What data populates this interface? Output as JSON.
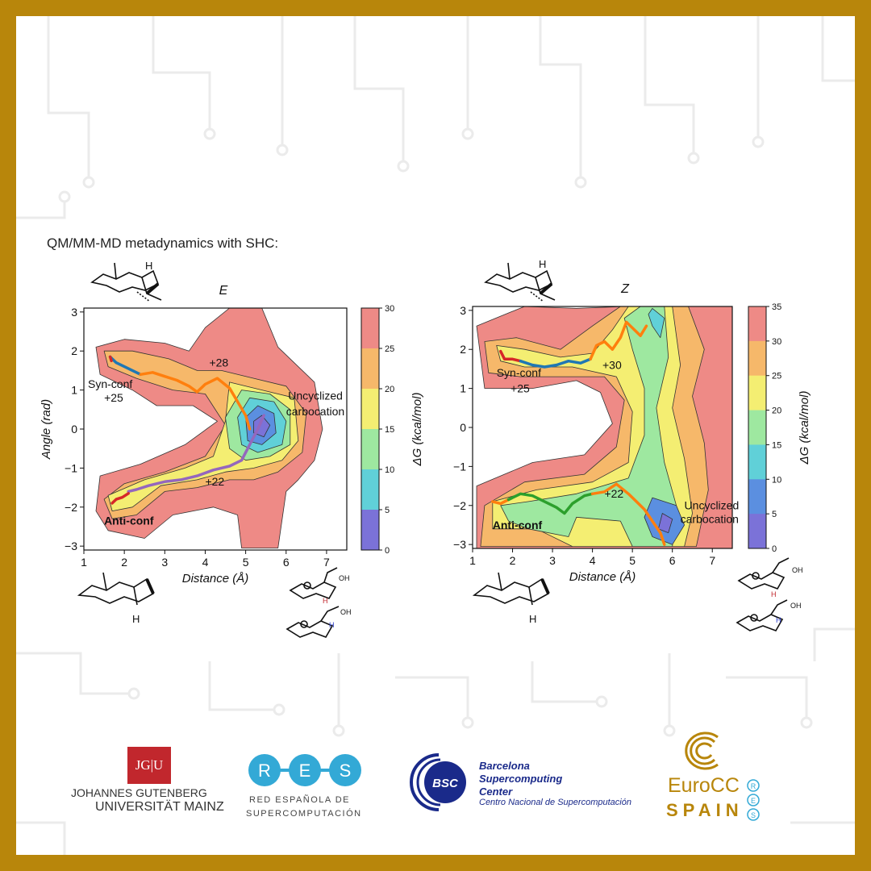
{
  "heading": "QM/MM-MD metadynamics with SHC:",
  "colors": {
    "frame": "#b8860b",
    "contour": [
      "#7b72d8",
      "#5b8fe0",
      "#60d0d8",
      "#9ee8a0",
      "#f4ee72",
      "#f6b86a",
      "#ee8a86"
    ],
    "path_red": "#d62728",
    "path_blue": "#1f77b4",
    "path_orange": "#ff7f0e",
    "path_purple": "#9467bd",
    "path_green": "#2ca02c"
  },
  "chart_data": [
    {
      "type": "heatmap",
      "title": "E",
      "xlabel": "Distance (Å)",
      "ylabel": "Angle (rad)",
      "xlim": [
        1,
        7.5
      ],
      "ylim": [
        -3.1,
        3.1
      ],
      "xticks": [
        "1",
        "2",
        "3",
        "4",
        "5",
        "6",
        "7"
      ],
      "yticks": [
        "3",
        "2",
        "1",
        "0",
        "−1",
        "−2",
        "−3"
      ],
      "colorbar": {
        "label": "ΔG (kcal/mol)",
        "min": 0,
        "max": 30,
        "ticks": [
          "30",
          "25",
          "20",
          "15",
          "10",
          "5",
          "0"
        ]
      },
      "annotations": [
        {
          "text": "+28",
          "x": 4.1,
          "y": 1.6,
          "weight": "normal"
        },
        {
          "text": "Syn-conf",
          "x": 1.1,
          "y": 1.05,
          "weight": "normal"
        },
        {
          "text": "+25",
          "x": 1.5,
          "y": 0.7,
          "weight": "normal"
        },
        {
          "text": "Uncyclized",
          "x": 6.05,
          "y": 0.75,
          "weight": "normal"
        },
        {
          "text": "carbocation",
          "x": 6.0,
          "y": 0.35,
          "weight": "normal"
        },
        {
          "text": "+22",
          "x": 4.0,
          "y": -1.45,
          "weight": "normal"
        },
        {
          "text": "Anti-conf",
          "x": 1.5,
          "y": -2.45,
          "weight": "bold"
        }
      ],
      "paths": [
        {
          "color": "path_blue",
          "points": [
            [
              1.65,
              1.85
            ],
            [
              1.8,
              1.7
            ],
            [
              2.0,
              1.6
            ],
            [
              2.2,
              1.5
            ],
            [
              2.4,
              1.4
            ]
          ]
        },
        {
          "color": "path_orange",
          "points": [
            [
              2.4,
              1.4
            ],
            [
              2.7,
              1.45
            ],
            [
              3.0,
              1.35
            ],
            [
              3.3,
              1.25
            ],
            [
              3.6,
              1.1
            ],
            [
              3.8,
              0.95
            ],
            [
              4.0,
              1.15
            ],
            [
              4.3,
              1.3
            ],
            [
              4.6,
              1.05
            ],
            [
              4.8,
              0.7
            ],
            [
              5.0,
              0.35
            ],
            [
              5.1,
              0.0
            ]
          ]
        },
        {
          "color": "path_purple",
          "points": [
            [
              5.45,
              0.35
            ],
            [
              5.3,
              0.0
            ],
            [
              5.1,
              -0.4
            ],
            [
              4.9,
              -0.8
            ],
            [
              4.6,
              -0.95
            ],
            [
              4.2,
              -1.05
            ],
            [
              3.8,
              -1.2
            ],
            [
              3.4,
              -1.3
            ],
            [
              3.0,
              -1.35
            ],
            [
              2.6,
              -1.45
            ],
            [
              2.3,
              -1.55
            ],
            [
              2.1,
              -1.6
            ]
          ]
        },
        {
          "color": "path_red",
          "points": [
            [
              2.1,
              -1.65
            ],
            [
              1.95,
              -1.75
            ],
            [
              1.8,
              -1.8
            ],
            [
              1.7,
              -1.9
            ]
          ]
        },
        {
          "color": "path_red",
          "points": [
            [
              1.65,
              1.85
            ],
            [
              1.68,
              1.75
            ]
          ]
        }
      ]
    },
    {
      "type": "heatmap",
      "title": "Z",
      "xlabel": "Distance (Å)",
      "ylabel": "",
      "xlim": [
        1,
        7.5
      ],
      "ylim": [
        -3.1,
        3.1
      ],
      "xticks": [
        "1",
        "2",
        "3",
        "4",
        "5",
        "6",
        "7"
      ],
      "yticks": [
        "3",
        "2",
        "1",
        "0",
        "−1",
        "−2",
        "−3"
      ],
      "colorbar": {
        "label": "ΔG (kcal/mol)",
        "min": 0,
        "max": 35,
        "ticks": [
          "35",
          "30",
          "25",
          "20",
          "15",
          "10",
          "5",
          "0"
        ]
      },
      "annotations": [
        {
          "text": "Syn-conf",
          "x": 1.6,
          "y": 1.3,
          "weight": "normal"
        },
        {
          "text": "+25",
          "x": 1.95,
          "y": 0.9,
          "weight": "normal"
        },
        {
          "text": "+30",
          "x": 4.25,
          "y": 1.5,
          "weight": "normal"
        },
        {
          "text": "+22",
          "x": 4.3,
          "y": -1.8,
          "weight": "normal"
        },
        {
          "text": "Uncyclized",
          "x": 6.3,
          "y": -2.1,
          "weight": "normal"
        },
        {
          "text": "carbocation",
          "x": 6.2,
          "y": -2.45,
          "weight": "normal"
        },
        {
          "text": "Anti-conf",
          "x": 1.5,
          "y": -2.6,
          "weight": "bold"
        }
      ],
      "paths": [
        {
          "color": "path_red",
          "points": [
            [
              1.7,
              1.95
            ],
            [
              1.8,
              1.75
            ],
            [
              2.0,
              1.75
            ],
            [
              2.2,
              1.7
            ]
          ]
        },
        {
          "color": "path_blue",
          "points": [
            [
              2.2,
              1.7
            ],
            [
              2.5,
              1.6
            ],
            [
              2.8,
              1.55
            ],
            [
              3.1,
              1.6
            ],
            [
              3.4,
              1.7
            ],
            [
              3.7,
              1.65
            ],
            [
              3.95,
              1.75
            ]
          ]
        },
        {
          "color": "path_orange",
          "points": [
            [
              3.95,
              1.75
            ],
            [
              4.1,
              2.1
            ],
            [
              4.3,
              2.2
            ],
            [
              4.5,
              2.0
            ],
            [
              4.7,
              2.3
            ],
            [
              4.85,
              2.7
            ],
            [
              5.0,
              2.55
            ],
            [
              5.2,
              2.35
            ],
            [
              5.35,
              2.6
            ]
          ]
        },
        {
          "color": "path_orange",
          "points": [
            [
              1.5,
              -1.9
            ],
            [
              1.7,
              -1.95
            ],
            [
              1.9,
              -1.85
            ]
          ]
        },
        {
          "color": "path_green",
          "points": [
            [
              1.9,
              -1.85
            ],
            [
              2.2,
              -1.7
            ],
            [
              2.5,
              -1.75
            ],
            [
              2.8,
              -1.9
            ],
            [
              3.1,
              -2.05
            ],
            [
              3.3,
              -2.2
            ],
            [
              3.5,
              -1.95
            ],
            [
              3.8,
              -1.75
            ],
            [
              4.0,
              -1.7
            ]
          ]
        },
        {
          "color": "path_orange",
          "points": [
            [
              4.0,
              -1.7
            ],
            [
              4.3,
              -1.65
            ],
            [
              4.6,
              -1.45
            ],
            [
              4.9,
              -1.7
            ],
            [
              5.1,
              -1.9
            ],
            [
              5.3,
              -2.1
            ],
            [
              5.5,
              -2.4
            ],
            [
              5.7,
              -2.7
            ],
            [
              5.8,
              -3.0
            ]
          ]
        }
      ]
    }
  ],
  "logos": {
    "jgu_mark": "JG|U",
    "jgu_line1": "JOHANNES GUTENBERG",
    "jgu_line2": "UNIVERSITÄT MAINZ",
    "res_word": "R E S",
    "res_line1": "RED ESPAÑOLA DE",
    "res_line2": "SUPERCOMPUTACIÓN",
    "bsc_mark": "BSC",
    "bsc_line1": "Barcelona",
    "bsc_line2": "Supercomputing",
    "bsc_line3": "Center",
    "bsc_line4": "Centro Nacional de Supercomputación",
    "eurocc_word": "EuroCC",
    "eurocc_spain": "SPAIN",
    "eurocc_res": "R E S"
  },
  "molecule_labels": [
    "H",
    "H",
    "OH",
    "H",
    "OH",
    "H",
    "H",
    "H",
    "OH",
    "H",
    "OH",
    "H"
  ]
}
